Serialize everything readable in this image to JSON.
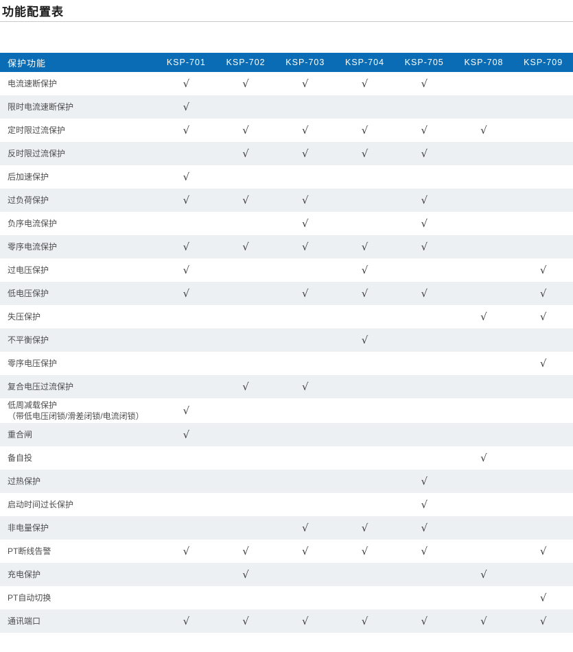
{
  "page_title": "功能配置表",
  "colors": {
    "header_bg": "#0a6cb4",
    "header_text": "#ffffff",
    "stripe_bg": "#ecf0f3",
    "row_text": "#4d4d4d",
    "check_color": "#3c3c3c",
    "title_rule": "#c9c9c9"
  },
  "table": {
    "check_symbol": "√",
    "header": [
      "保护功能",
      "KSP-701",
      "KSP-702",
      "KSP-703",
      "KSP-704",
      "KSP-705",
      "KSP-708",
      "KSP-709"
    ],
    "rows": [
      {
        "label": "电流速断保护",
        "checks": [
          1,
          1,
          1,
          1,
          1,
          0,
          0
        ]
      },
      {
        "label": "限时电流速断保护",
        "checks": [
          1,
          0,
          0,
          0,
          0,
          0,
          0
        ]
      },
      {
        "label": "定时限过流保护",
        "checks": [
          1,
          1,
          1,
          1,
          1,
          1,
          0
        ]
      },
      {
        "label": "反时限过流保护",
        "checks": [
          0,
          1,
          1,
          1,
          1,
          0,
          0
        ]
      },
      {
        "label": "后加速保护",
        "checks": [
          1,
          0,
          0,
          0,
          0,
          0,
          0
        ]
      },
      {
        "label": "过负荷保护",
        "checks": [
          1,
          1,
          1,
          0,
          1,
          0,
          0
        ]
      },
      {
        "label": "负序电流保护",
        "checks": [
          0,
          0,
          1,
          0,
          1,
          0,
          0
        ]
      },
      {
        "label": "零序电流保护",
        "checks": [
          1,
          1,
          1,
          1,
          1,
          0,
          0
        ]
      },
      {
        "label": "过电压保护",
        "checks": [
          1,
          0,
          0,
          1,
          0,
          0,
          1
        ]
      },
      {
        "label": "低电压保护",
        "checks": [
          1,
          0,
          1,
          1,
          1,
          0,
          1
        ]
      },
      {
        "label": "失压保护",
        "checks": [
          0,
          0,
          0,
          0,
          0,
          1,
          1
        ]
      },
      {
        "label": "不平衡保护",
        "checks": [
          0,
          0,
          0,
          1,
          0,
          0,
          0
        ]
      },
      {
        "label": "零序电压保护",
        "checks": [
          0,
          0,
          0,
          0,
          0,
          0,
          1
        ]
      },
      {
        "label": "复合电压过流保护",
        "checks": [
          0,
          1,
          1,
          0,
          0,
          0,
          0
        ]
      },
      {
        "label": "低周减载保护",
        "sublabel": "（带低电压闭锁/滑差闭锁/电流闭锁）",
        "checks": [
          1,
          0,
          0,
          0,
          0,
          0,
          0
        ]
      },
      {
        "label": "重合闸",
        "checks": [
          1,
          0,
          0,
          0,
          0,
          0,
          0
        ]
      },
      {
        "label": "备自投",
        "checks": [
          0,
          0,
          0,
          0,
          0,
          1,
          0
        ]
      },
      {
        "label": "过热保护",
        "checks": [
          0,
          0,
          0,
          0,
          1,
          0,
          0
        ]
      },
      {
        "label": "启动时间过长保护",
        "checks": [
          0,
          0,
          0,
          0,
          1,
          0,
          0
        ]
      },
      {
        "label": "非电量保护",
        "checks": [
          0,
          0,
          1,
          1,
          1,
          0,
          0
        ]
      },
      {
        "label": "PT断线告警",
        "checks": [
          1,
          1,
          1,
          1,
          1,
          0,
          1
        ]
      },
      {
        "label": "充电保护",
        "checks": [
          0,
          1,
          0,
          0,
          0,
          1,
          0
        ]
      },
      {
        "label": "PT自动切换",
        "checks": [
          0,
          0,
          0,
          0,
          0,
          0,
          1
        ]
      },
      {
        "label": "通讯端口",
        "checks": [
          1,
          1,
          1,
          1,
          1,
          1,
          1
        ]
      }
    ]
  }
}
